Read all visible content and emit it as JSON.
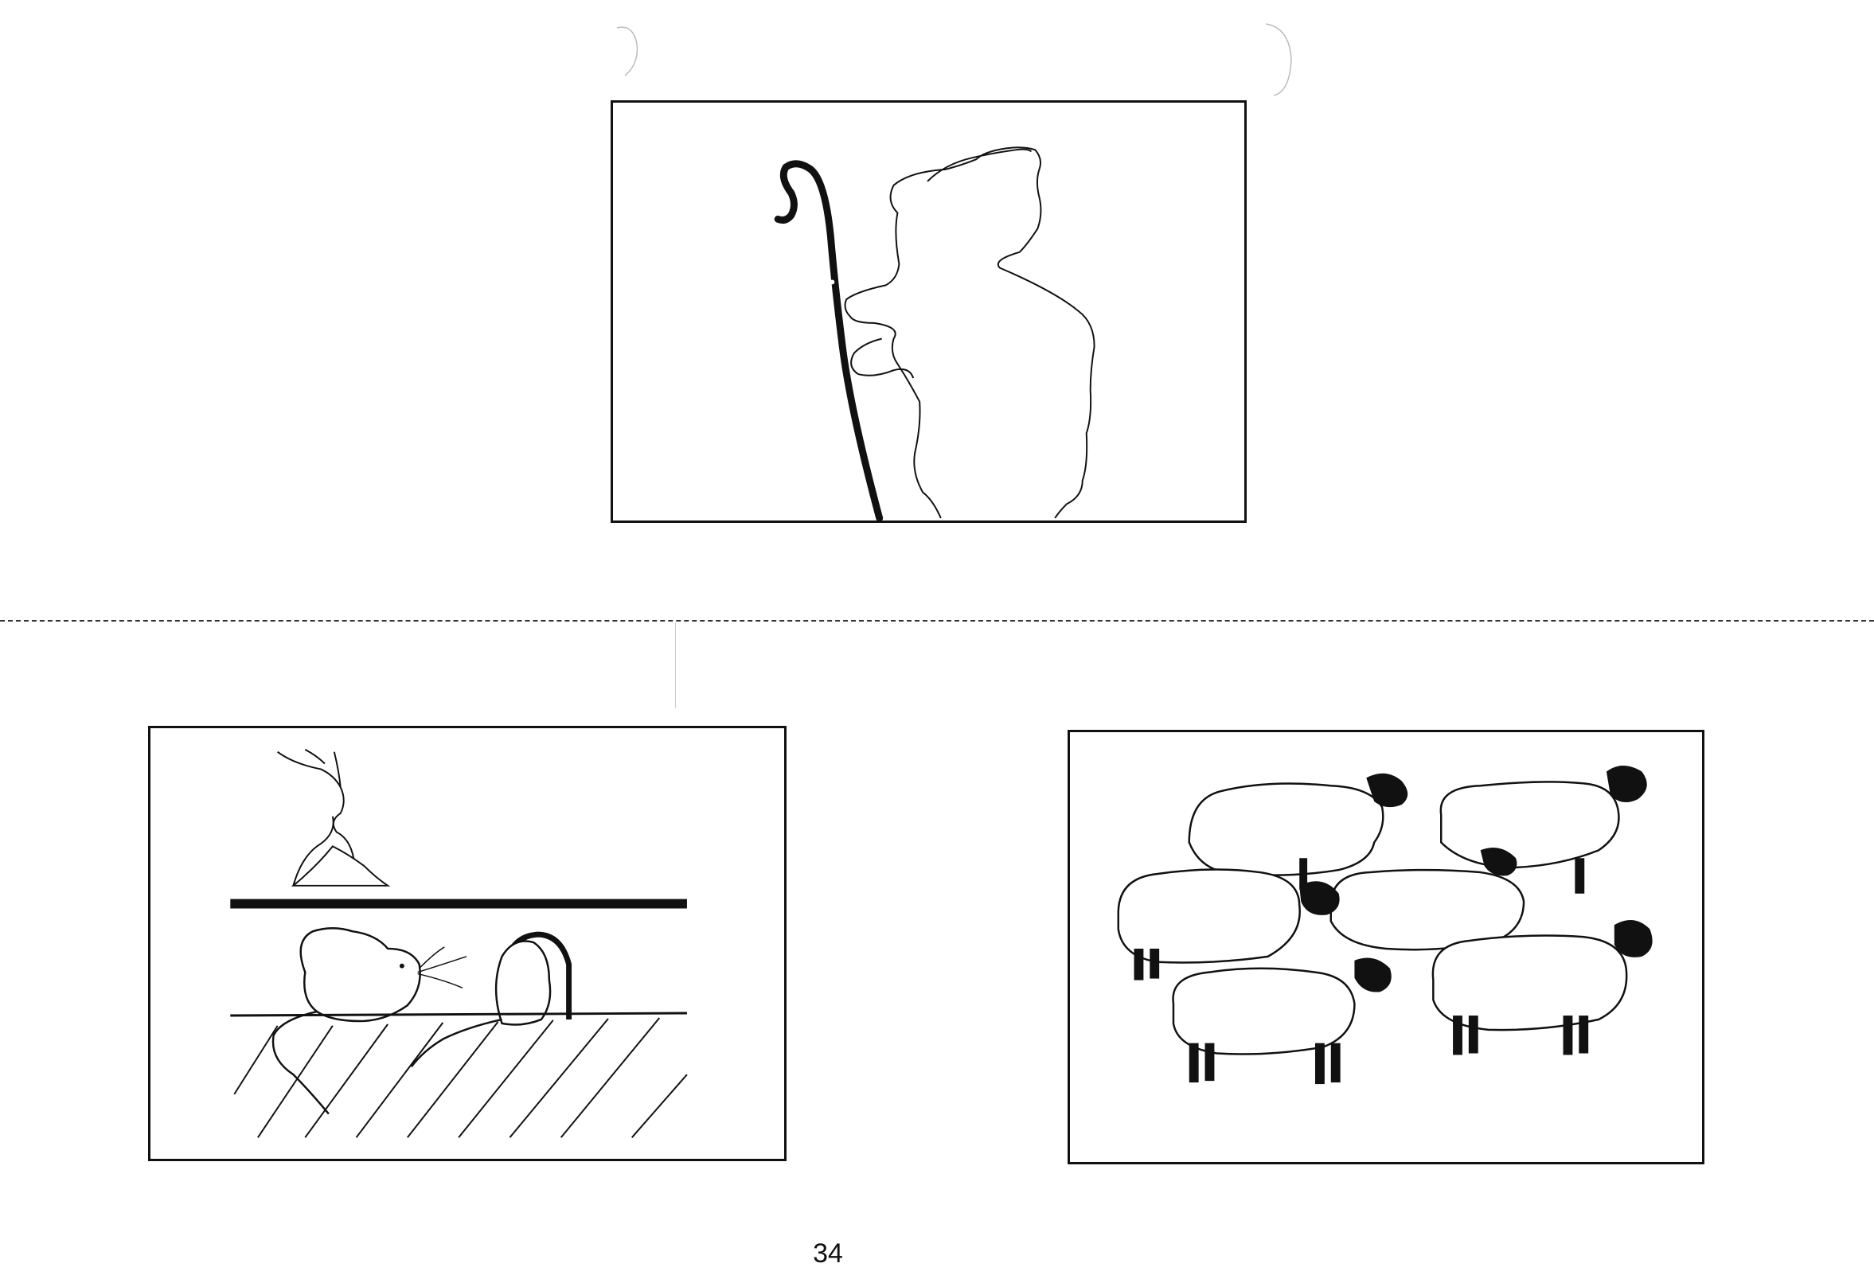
{
  "page": {
    "number": "34"
  },
  "cards": [
    {
      "subject": "shepherd-with-crook"
    },
    {
      "subject": "rats-in-wall"
    },
    {
      "subject": "flock-of-sheep"
    }
  ],
  "colors": {
    "ink": "#111111",
    "paper": "#ffffff"
  }
}
